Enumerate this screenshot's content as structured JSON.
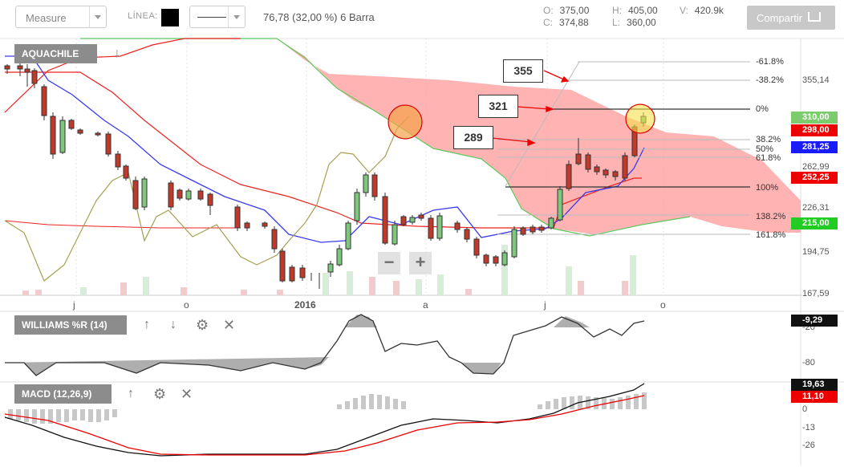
{
  "toolbar": {
    "measure_label": "Measure",
    "linea_label": "LÍNEA:",
    "line_color": "#000000",
    "bar_info": "76,78 (32,00 %) 6 Barra",
    "ohlc": {
      "o_key": "O:",
      "o_val": "375,00",
      "h_key": "H:",
      "h_val": "405,00",
      "v_key": "V:",
      "v_val": "420.9k",
      "c_key": "C:",
      "c_val": "374,88",
      "l_key": "L:",
      "l_val": "360,00"
    },
    "share_label": "Compartir"
  },
  "main_panel": {
    "symbol": "AQUACHILE",
    "price_axis": [
      "355,14",
      "262,99",
      "226,31",
      "194,75",
      "167,59"
    ],
    "price_tags": [
      {
        "label": "310,00",
        "color": "#5cb85c"
      },
      {
        "label": "298,00",
        "color": "#e00000"
      },
      {
        "label": "281,25",
        "color": "#1a1aff"
      },
      {
        "label": "252,25",
        "color": "#e00000"
      },
      {
        "label": "215,00",
        "color": "#22cc22"
      }
    ],
    "fib_levels": [
      "-61.8%",
      "-38.2%",
      "0%",
      "38.2%",
      "50%",
      "61.8%",
      "100%",
      "138.2%",
      "161.8%"
    ],
    "callouts": [
      "355",
      "321",
      "289"
    ],
    "months": [
      "j",
      "o",
      "2016",
      "a",
      "j",
      "o"
    ]
  },
  "williams_panel": {
    "title": "WILLIAMS %R (14)",
    "value_tag": "-9,29",
    "axis": [
      "-20",
      "-80"
    ]
  },
  "macd_panel": {
    "title": "MACD (12,26,9)",
    "value_tags": [
      {
        "label": "19,63",
        "color": "#111111"
      },
      {
        "label": "11,10",
        "color": "#e00000"
      }
    ],
    "axis": [
      "0",
      "-13",
      "-26"
    ]
  },
  "icons": {
    "down_arrow": "down-arrow-icon",
    "up_arrow": "up-arrow-icon",
    "gear": "gear-icon",
    "close": "close-icon",
    "share": "share-icon",
    "zoom_out": "zoom-out-icon",
    "zoom_in": "zoom-in-icon"
  },
  "chart_data": {
    "type": "candlestick",
    "series": [
      {
        "name": "price",
        "close_approx": [
          390,
          380,
          340,
          300,
          290,
          280,
          268,
          255,
          245,
          240,
          238,
          235,
          225,
          215,
          205,
          195,
          190,
          198,
          210,
          240,
          260,
          215,
          225,
          230,
          220,
          212,
          196,
          192,
          210,
          232,
          262,
          285,
          262,
          265,
          300,
          310
        ]
      },
      {
        "name": "ichimoku-cloud",
        "span_a_top": 355,
        "span_b_bottom": 215
      },
      {
        "name": "williams-r",
        "range": [
          -100,
          0
        ],
        "last": -9.29
      },
      {
        "name": "macd",
        "macd_last": 19.63,
        "signal_last": 11.1
      }
    ]
  }
}
